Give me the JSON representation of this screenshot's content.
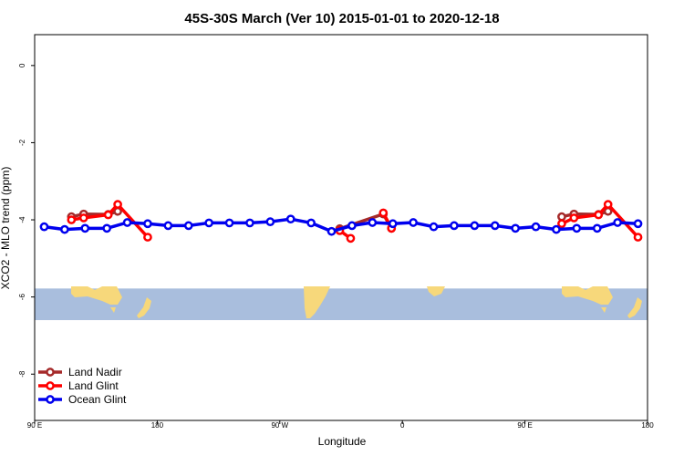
{
  "chart_data": {
    "type": "line",
    "title": "45S-30S March (Ver 10)   2015-01-01 to 2020-12-18",
    "xlabel": "Longitude",
    "ylabel": "XCO2 - MLO trend (ppm)",
    "xlim": [
      90,
      540
    ],
    "ylim": [
      -9.2,
      0.8
    ],
    "x_ticks": [
      {
        "value": 90,
        "label": "90 E"
      },
      {
        "value": 180,
        "label": "180"
      },
      {
        "value": 270,
        "label": "90 W"
      },
      {
        "value": 360,
        "label": "0"
      },
      {
        "value": 450,
        "label": "90 E"
      },
      {
        "value": 540,
        "label": "180"
      }
    ],
    "y_ticks": [
      {
        "value": 0,
        "label": "0"
      },
      {
        "value": -2,
        "label": "-2"
      },
      {
        "value": -4,
        "label": "-4"
      },
      {
        "value": -6,
        "label": "-6"
      },
      {
        "value": -8,
        "label": "-8"
      }
    ],
    "grid": false,
    "legend_position": "bottom-left",
    "map_band": {
      "y_top": -5.78,
      "y_bottom": -6.6,
      "ocean_color": "#a9bedd",
      "land_color": "#f7d87b"
    },
    "series": [
      {
        "name": "Land Nadir",
        "color": "#a52a2a",
        "segments": [
          [
            {
              "x": 117,
              "y": -3.92
            },
            {
              "x": 126,
              "y": -3.85
            },
            {
              "x": 144,
              "y": -3.86
            },
            {
              "x": 151,
              "y": -3.78
            }
          ],
          [
            {
              "x": 314,
              "y": -4.23
            },
            {
              "x": 346,
              "y": -3.85
            },
            {
              "x": 352,
              "y": -4.22
            }
          ],
          [
            {
              "x": 477,
              "y": -3.92
            },
            {
              "x": 486,
              "y": -3.85
            },
            {
              "x": 504,
              "y": -3.86
            },
            {
              "x": 511,
              "y": -3.78
            }
          ]
        ]
      },
      {
        "name": "Land Glint",
        "color": "#ff0000",
        "segments": [
          [
            {
              "x": 117,
              "y": -4.0
            },
            {
              "x": 126,
              "y": -3.95
            },
            {
              "x": 144,
              "y": -3.87
            },
            {
              "x": 151,
              "y": -3.6
            },
            {
              "x": 173,
              "y": -4.45
            }
          ],
          [
            {
              "x": 314,
              "y": -4.28
            },
            {
              "x": 322,
              "y": -4.48
            }
          ],
          [
            {
              "x": 346,
              "y": -3.82
            },
            {
              "x": 352,
              "y": -4.22
            }
          ],
          [
            {
              "x": 477,
              "y": -4.1
            },
            {
              "x": 486,
              "y": -3.95
            },
            {
              "x": 504,
              "y": -3.87
            },
            {
              "x": 511,
              "y": -3.6
            },
            {
              "x": 533,
              "y": -4.45
            }
          ]
        ]
      },
      {
        "name": "Ocean Glint",
        "color": "#0000ee",
        "segments": [
          [
            {
              "x": 97,
              "y": -4.18
            },
            {
              "x": 112,
              "y": -4.25
            },
            {
              "x": 127,
              "y": -4.22
            },
            {
              "x": 143,
              "y": -4.22
            },
            {
              "x": 158,
              "y": -4.07
            },
            {
              "x": 173,
              "y": -4.1
            },
            {
              "x": 188,
              "y": -4.15
            },
            {
              "x": 203,
              "y": -4.15
            },
            {
              "x": 218,
              "y": -4.08
            },
            {
              "x": 233,
              "y": -4.08
            },
            {
              "x": 248,
              "y": -4.08
            },
            {
              "x": 263,
              "y": -4.05
            },
            {
              "x": 278,
              "y": -3.98
            },
            {
              "x": 293,
              "y": -4.08
            },
            {
              "x": 308,
              "y": -4.3
            },
            {
              "x": 323,
              "y": -4.15
            },
            {
              "x": 338,
              "y": -4.07
            },
            {
              "x": 353,
              "y": -4.1
            },
            {
              "x": 368,
              "y": -4.07
            },
            {
              "x": 383,
              "y": -4.18
            },
            {
              "x": 398,
              "y": -4.15
            },
            {
              "x": 413,
              "y": -4.15
            },
            {
              "x": 428,
              "y": -4.15
            },
            {
              "x": 443,
              "y": -4.22
            },
            {
              "x": 458,
              "y": -4.18
            },
            {
              "x": 473,
              "y": -4.25
            },
            {
              "x": 488,
              "y": -4.22
            },
            {
              "x": 503,
              "y": -4.22
            },
            {
              "x": 518,
              "y": -4.07
            },
            {
              "x": 533,
              "y": -4.1
            }
          ]
        ]
      }
    ]
  }
}
